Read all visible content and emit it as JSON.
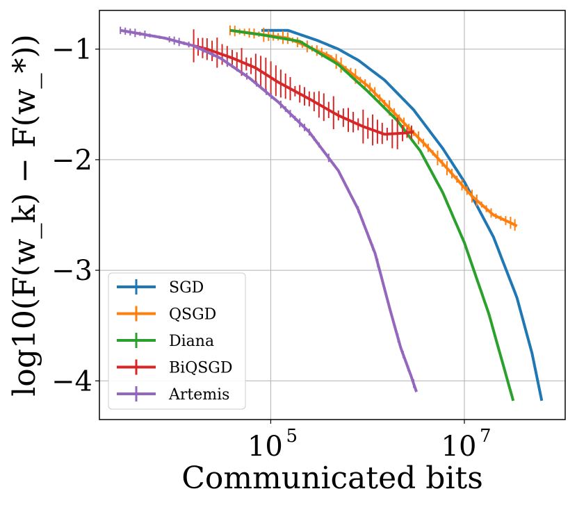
{
  "chart_data": {
    "type": "line",
    "title": "",
    "xlabel": "Communicated bits",
    "ylabel": "log10(F(w_k) − F(w_*))",
    "x_scale": "log",
    "xlim": [
      1700,
      110000000
    ],
    "ylim": [
      -4.35,
      -0.65
    ],
    "x_ticks": [
      {
        "value": 100000,
        "base": "10",
        "exp": "5"
      },
      {
        "value": 10000000,
        "base": "10",
        "exp": "7"
      }
    ],
    "y_ticks": [
      {
        "value": -1,
        "label": "−1"
      },
      {
        "value": -2,
        "label": "−2"
      },
      {
        "value": -3,
        "label": "−3"
      },
      {
        "value": -4,
        "label": "−4"
      }
    ],
    "grid": true,
    "legend_position": "bottom-left",
    "series": [
      {
        "name": "SGD",
        "color": "#1f77b4",
        "noise": 0,
        "x": [
          80000,
          150000,
          300000,
          500000,
          800000,
          1500000,
          3000000,
          6000000,
          10000000,
          20000000,
          35000000,
          50000000,
          63000000
        ],
        "y": [
          -0.83,
          -0.83,
          -0.92,
          -1.0,
          -1.1,
          -1.28,
          -1.55,
          -1.9,
          -2.2,
          -2.7,
          -3.25,
          -3.75,
          -4.18
        ]
      },
      {
        "name": "QSGD",
        "color": "#ff7f0e",
        "noise": 0.05,
        "x": [
          38000,
          150000,
          400000,
          1000000,
          2000000,
          4000000,
          7000000,
          12000000,
          20000000,
          30000000,
          35000000
        ],
        "y": [
          -0.83,
          -0.9,
          -1.06,
          -1.33,
          -1.6,
          -1.87,
          -2.1,
          -2.33,
          -2.5,
          -2.57,
          -2.6
        ]
      },
      {
        "name": "Diana",
        "color": "#2ca02c",
        "noise": 0,
        "x": [
          38000,
          80000,
          200000,
          500000,
          1000000,
          2000000,
          3500000,
          6000000,
          10000000,
          18000000,
          26000000,
          32000000
        ],
        "y": [
          -0.83,
          -0.87,
          -0.93,
          -1.14,
          -1.38,
          -1.64,
          -1.92,
          -2.3,
          -2.75,
          -3.4,
          -3.9,
          -4.18
        ]
      },
      {
        "name": "BiQSGD",
        "color": "#d62728",
        "noise": 0.11,
        "x": [
          16000,
          22000,
          40000,
          70000,
          120000,
          250000,
          500000,
          900000,
          1500000,
          2300000,
          3000000
        ],
        "y": [
          -0.97,
          -1.0,
          -1.08,
          -1.17,
          -1.3,
          -1.45,
          -1.6,
          -1.7,
          -1.77,
          -1.76,
          -1.75
        ]
      },
      {
        "name": "Artemis",
        "color": "#9467bd",
        "noise": 0.03,
        "x": [
          2800,
          8000,
          16000,
          30000,
          60000,
          120000,
          250000,
          500000,
          800000,
          1200000,
          1700000,
          2200000,
          2800000,
          3200000
        ],
        "y": [
          -0.83,
          -0.9,
          -0.97,
          -1.08,
          -1.26,
          -1.48,
          -1.75,
          -2.1,
          -2.45,
          -2.85,
          -3.35,
          -3.7,
          -3.95,
          -4.1
        ]
      }
    ]
  }
}
